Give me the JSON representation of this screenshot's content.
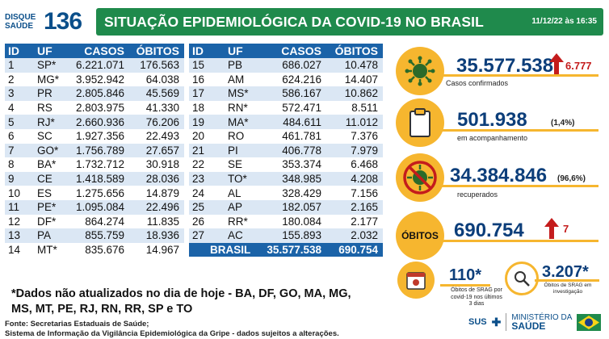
{
  "logo": {
    "line1": "DISQUE",
    "line2": "SAÚDE",
    "number": "136"
  },
  "header": {
    "title": "SITUAÇÃO EPIDEMIOLÓGICA DA COVID-19 NO BRASIL",
    "date": "11/12/22 às 16:35"
  },
  "table_headers": {
    "id": "ID",
    "uf": "UF",
    "casos": "CASOS",
    "obitos": "ÓBITOS"
  },
  "left_rows": [
    {
      "id": "1",
      "uf": "SP*",
      "casos": "6.221.071",
      "obitos": "176.563"
    },
    {
      "id": "2",
      "uf": "MG*",
      "casos": "3.952.942",
      "obitos": "64.038"
    },
    {
      "id": "3",
      "uf": "PR",
      "casos": "2.805.846",
      "obitos": "45.569"
    },
    {
      "id": "4",
      "uf": "RS",
      "casos": "2.803.975",
      "obitos": "41.330"
    },
    {
      "id": "5",
      "uf": "RJ*",
      "casos": "2.660.936",
      "obitos": "76.206"
    },
    {
      "id": "6",
      "uf": "SC",
      "casos": "1.927.356",
      "obitos": "22.493"
    },
    {
      "id": "7",
      "uf": "GO*",
      "casos": "1.756.789",
      "obitos": "27.657"
    },
    {
      "id": "8",
      "uf": "BA*",
      "casos": "1.732.712",
      "obitos": "30.918"
    },
    {
      "id": "9",
      "uf": "CE",
      "casos": "1.418.589",
      "obitos": "28.036"
    },
    {
      "id": "10",
      "uf": "ES",
      "casos": "1.275.656",
      "obitos": "14.879"
    },
    {
      "id": "11",
      "uf": "PE*",
      "casos": "1.095.084",
      "obitos": "22.496"
    },
    {
      "id": "12",
      "uf": "DF*",
      "casos": "864.274",
      "obitos": "11.835"
    },
    {
      "id": "13",
      "uf": "PA",
      "casos": "855.759",
      "obitos": "18.936"
    },
    {
      "id": "14",
      "uf": "MT*",
      "casos": "835.676",
      "obitos": "14.967"
    }
  ],
  "right_rows": [
    {
      "id": "15",
      "uf": "PB",
      "casos": "686.027",
      "obitos": "10.478"
    },
    {
      "id": "16",
      "uf": "AM",
      "casos": "624.216",
      "obitos": "14.407"
    },
    {
      "id": "17",
      "uf": "MS*",
      "casos": "586.167",
      "obitos": "10.862"
    },
    {
      "id": "18",
      "uf": "RN*",
      "casos": "572.471",
      "obitos": "8.511"
    },
    {
      "id": "19",
      "uf": "MA*",
      "casos": "484.611",
      "obitos": "11.012"
    },
    {
      "id": "20",
      "uf": "RO",
      "casos": "461.781",
      "obitos": "7.376"
    },
    {
      "id": "21",
      "uf": "PI",
      "casos": "406.778",
      "obitos": "7.979"
    },
    {
      "id": "22",
      "uf": "SE",
      "casos": "353.374",
      "obitos": "6.468"
    },
    {
      "id": "23",
      "uf": "TO*",
      "casos": "348.985",
      "obitos": "4.208"
    },
    {
      "id": "24",
      "uf": "AL",
      "casos": "328.429",
      "obitos": "7.156"
    },
    {
      "id": "25",
      "uf": "AP",
      "casos": "182.057",
      "obitos": "2.165"
    },
    {
      "id": "26",
      "uf": "RR*",
      "casos": "180.084",
      "obitos": "2.177"
    },
    {
      "id": "27",
      "uf": "AC",
      "casos": "155.893",
      "obitos": "2.032"
    }
  ],
  "total_row": {
    "label": "BRASIL",
    "casos": "35.577.538",
    "obitos": "690.754"
  },
  "note": "*Dados não atualizados no dia de hoje - BA, DF, GO, MA, MG, MS, MT, PE, RJ, RN, RR, SP e TO",
  "source": {
    "line1": "Fonte: Secretarias Estaduais de Saúde;",
    "line2": "Sistema de Informação da Vigilância Epidemiológica da Gripe - dados sujeitos a alterações."
  },
  "indicators": {
    "confirmed": {
      "value": "35.577.538",
      "delta": "6.777",
      "label": "Casos confirmados",
      "icon": "virus-icon"
    },
    "monitoring": {
      "value": "501.938",
      "pct": "(1,4%)",
      "label": "em acompanhamento",
      "icon": "clipboard-icon"
    },
    "recovered": {
      "value": "34.384.846",
      "pct": "(96,6%)",
      "label": "recuperados",
      "icon": "recovered-virus-icon"
    },
    "deaths": {
      "title": "ÓBITOS",
      "value": "690.754",
      "delta": "7"
    },
    "srag": {
      "value": "110*",
      "label1": "Óbitos de SRAG por",
      "label2": "covid-19 nos últimos",
      "label3": "3 dias",
      "icon": "calendar-icon"
    },
    "investigation": {
      "value": "3.207*",
      "label1": "Óbitos de SRAG em",
      "label2": "investigação",
      "icon": "magnifier-icon"
    }
  },
  "footer": {
    "sus": "SUS",
    "ministry1": "MINISTÉRIO DA",
    "ministry2": "SAÚDE"
  },
  "colors": {
    "header_green": "#1f8a4c",
    "table_blue": "#1b63a8",
    "stripe": "#dbe7f4",
    "accent_yellow": "#f6b62f",
    "number_blue": "#0c3e7a",
    "delta_red": "#c41c1c"
  }
}
